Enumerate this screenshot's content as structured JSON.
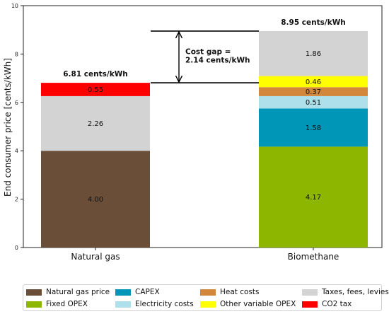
{
  "chart_data": {
    "type": "bar",
    "stacked": true,
    "ylabel": "End consumer price [cents/kWh]",
    "xlabel": "",
    "ylim": [
      0,
      10
    ],
    "yticks": [
      "0",
      "2",
      "4",
      "6",
      "8",
      "10"
    ],
    "categories": [
      "Natural gas",
      "Biomethane"
    ],
    "totals": [
      "6.81 cents/kWh",
      "8.95 cents/kWh"
    ],
    "segments": [
      [
        {
          "component": "natural_gas_price",
          "value": 4.0,
          "label": "4.00"
        },
        {
          "component": "taxes",
          "value": 2.26,
          "label": "2.26"
        },
        {
          "component": "co2_tax",
          "value": 0.55,
          "label": "0.55"
        }
      ],
      [
        {
          "component": "fixed_opex",
          "value": 4.17,
          "label": "4.17"
        },
        {
          "component": "capex",
          "value": 1.58,
          "label": "1.58"
        },
        {
          "component": "electricity",
          "value": 0.51,
          "label": "0.51"
        },
        {
          "component": "heat",
          "value": 0.37,
          "label": "0.37"
        },
        {
          "component": "other_var_opex",
          "value": 0.46,
          "label": "0.46"
        },
        {
          "component": "taxes",
          "value": 1.86,
          "label": "1.86"
        }
      ]
    ],
    "components": {
      "natural_gas_price": {
        "name": "Natural gas price",
        "color": "#6b4e38"
      },
      "fixed_opex": {
        "name": "Fixed OPEX",
        "color": "#8db600"
      },
      "capex": {
        "name": "CAPEX",
        "color": "#0096b8"
      },
      "electricity": {
        "name": "Electricity costs",
        "color": "#ade0ea"
      },
      "heat": {
        "name": "Heat costs",
        "color": "#d3873a"
      },
      "other_var_opex": {
        "name": "Other variable OPEX",
        "color": "#ffff00"
      },
      "taxes": {
        "name": "Taxes, fees, levies",
        "color": "#d3d3d3"
      },
      "co2_tax": {
        "name": "CO2 tax",
        "color": "#ff0000"
      }
    },
    "annotation": {
      "lines": [
        "Cost gap =",
        "2.14 cents/kWh"
      ],
      "from": 6.81,
      "to": 8.95
    },
    "legend": {
      "placement": "bottom",
      "order": [
        "natural_gas_price",
        "capex",
        "heat",
        "taxes",
        "fixed_opex",
        "electricity",
        "other_var_opex",
        "co2_tax"
      ]
    }
  }
}
